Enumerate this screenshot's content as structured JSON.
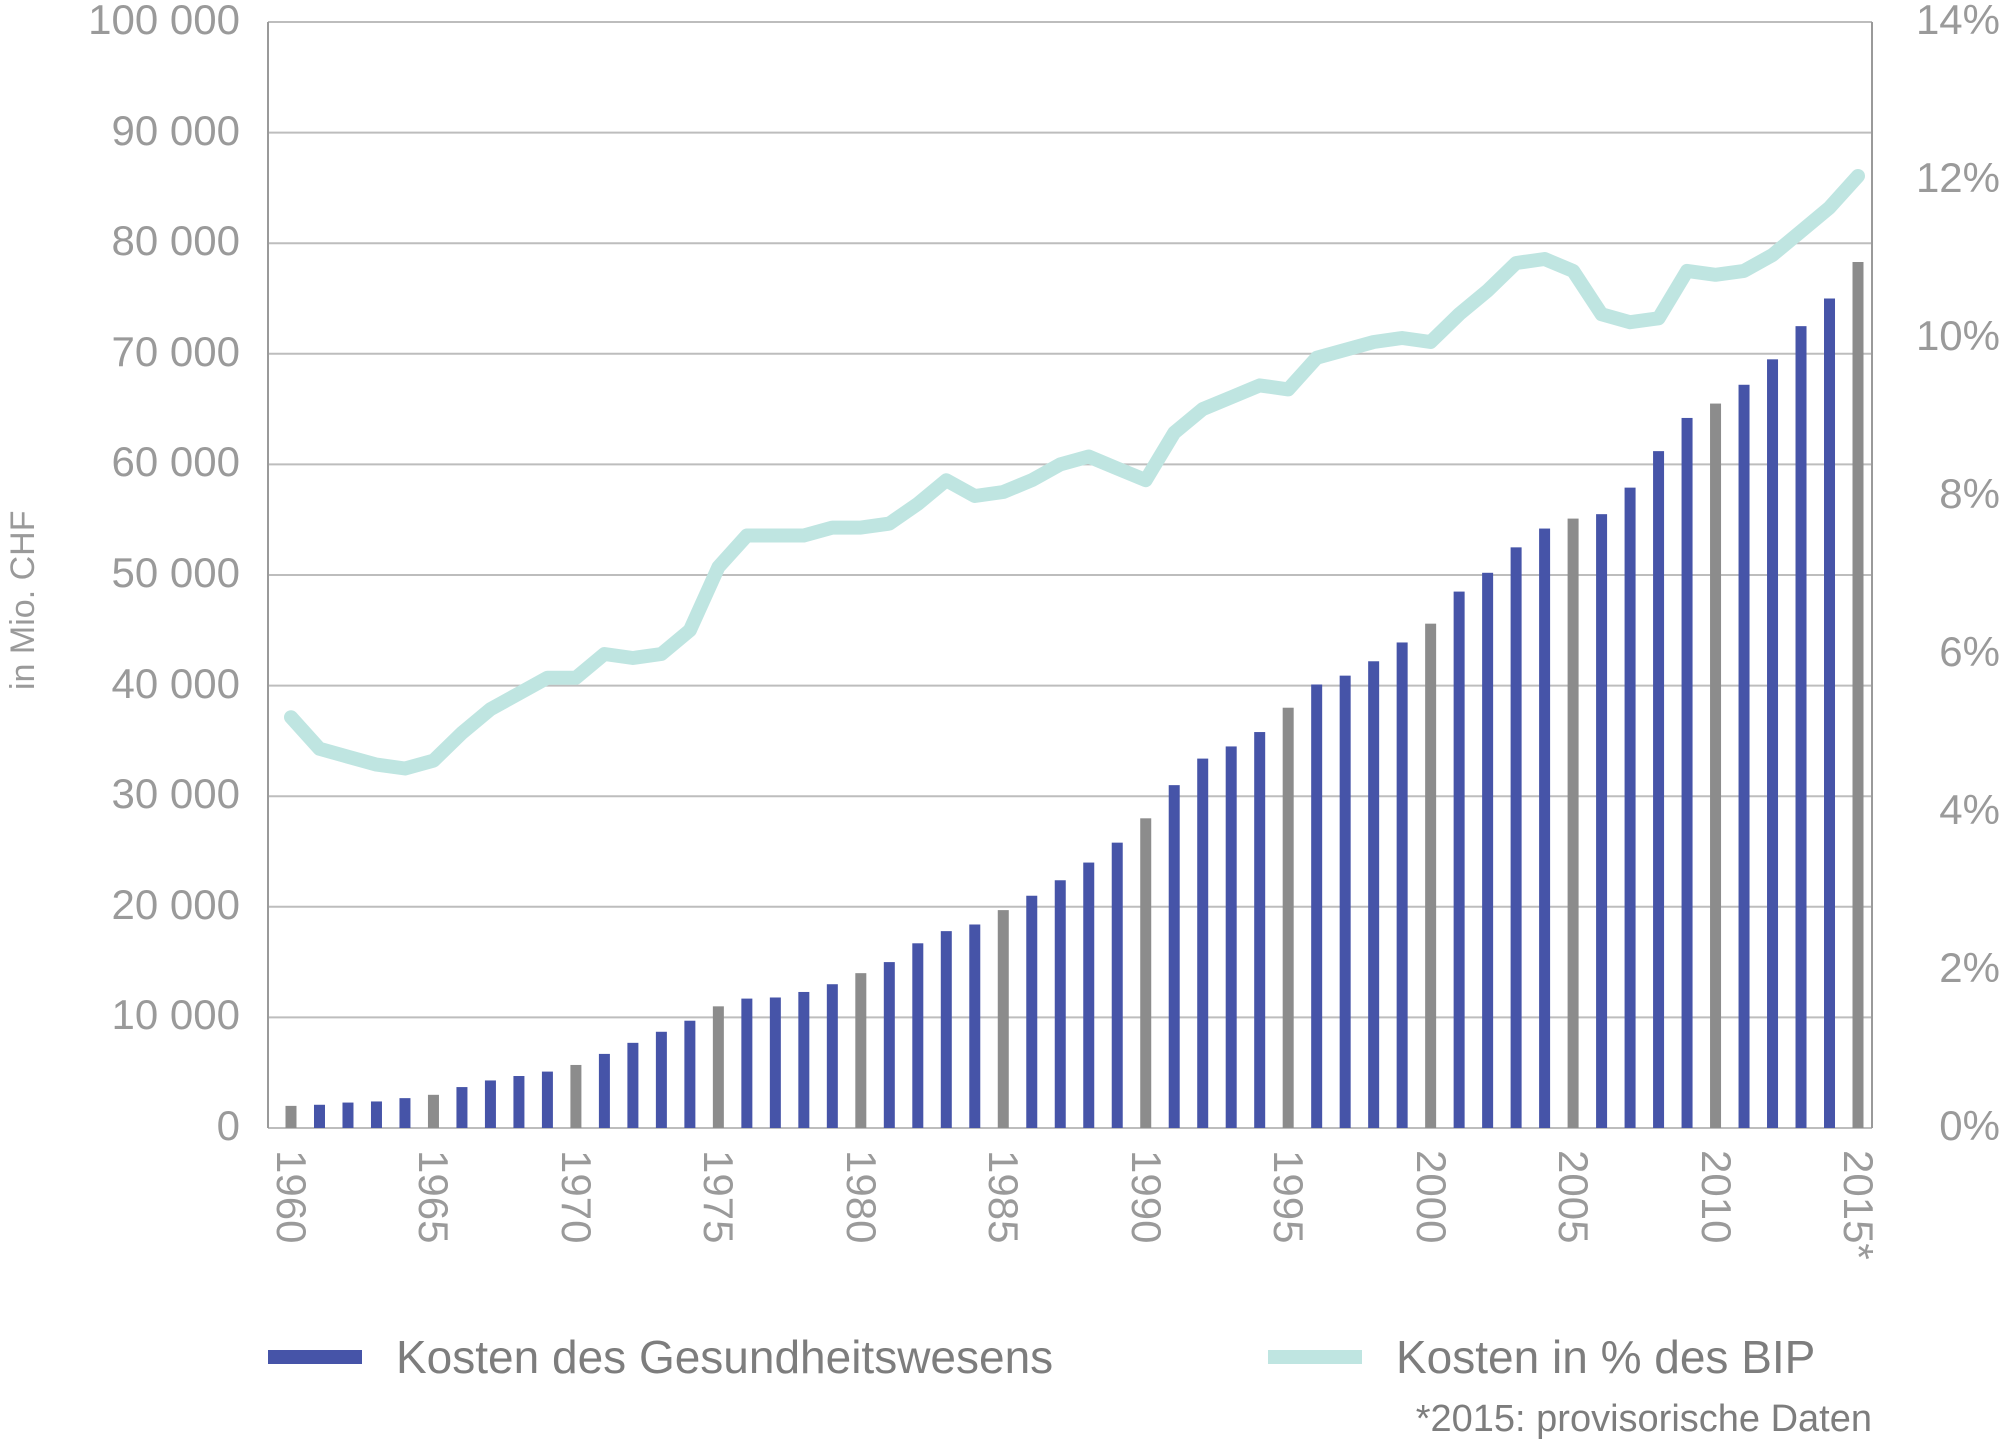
{
  "chart_data": {
    "type": "bar",
    "ylabel": "in Mio. CHF",
    "y_ticks": [
      "0",
      "10 000",
      "20 000",
      "30 000",
      "40 000",
      "50 000",
      "60 000",
      "70 000",
      "80 000",
      "90 000",
      "100 000"
    ],
    "y2_ticks": [
      "0%",
      "2%",
      "4%",
      "6%",
      "8%",
      "10%",
      "12%",
      "14%"
    ],
    "ylim": [
      0,
      100000
    ],
    "y2lim": [
      0,
      14
    ],
    "grid": true,
    "x_ticks": [
      "1960",
      "1965",
      "1970",
      "1975",
      "1980",
      "1985",
      "1990",
      "1995",
      "2000",
      "2005",
      "2010",
      "2015*"
    ],
    "colors": {
      "bars": "#4654a8",
      "bars_highlight": "#8c8c8c",
      "line": "#bfe5e1",
      "grid": "#bdbdbd",
      "axis": "#9a9a9a"
    },
    "categories": [
      "1960",
      "1961",
      "1962",
      "1963",
      "1964",
      "1965",
      "1966",
      "1967",
      "1968",
      "1969",
      "1970",
      "1971",
      "1972",
      "1973",
      "1974",
      "1975",
      "1976",
      "1977",
      "1978",
      "1979",
      "1980",
      "1981",
      "1982",
      "1983",
      "1984",
      "1985",
      "1986",
      "1987",
      "1988",
      "1989",
      "1990",
      "1991",
      "1992",
      "1993",
      "1994",
      "1995",
      "1996",
      "1997",
      "1998",
      "1999",
      "2000",
      "2001",
      "2002",
      "2003",
      "2004",
      "2005",
      "2006",
      "2007",
      "2008",
      "2009",
      "2010",
      "2011",
      "2012",
      "2013",
      "2014",
      "2015"
    ],
    "series": [
      {
        "name": "Kosten des Gesundheitswesens",
        "type": "bar",
        "axis": "left",
        "values": [
          2000,
          2100,
          2300,
          2400,
          2700,
          3000,
          3700,
          4300,
          4700,
          5100,
          5700,
          6700,
          7700,
          8700,
          9700,
          11000,
          11700,
          11800,
          12300,
          13000,
          14000,
          15000,
          16700,
          17800,
          18400,
          19700,
          21000,
          22400,
          24000,
          25800,
          28000,
          31000,
          33400,
          34500,
          35800,
          38000,
          40100,
          40900,
          42200,
          43900,
          45600,
          48500,
          50200,
          52500,
          54200,
          55100,
          55500,
          57900,
          61200,
          64200,
          65500,
          67200,
          69500,
          72500,
          75000,
          78300
        ]
      },
      {
        "name": "Kosten in % des BIP",
        "type": "line",
        "axis": "right",
        "values": [
          5.2,
          4.8,
          4.7,
          4.6,
          4.55,
          4.65,
          5.0,
          5.3,
          5.5,
          5.7,
          5.7,
          6.0,
          5.95,
          6.0,
          6.3,
          7.1,
          7.5,
          7.5,
          7.5,
          7.6,
          7.6,
          7.65,
          7.9,
          8.2,
          8.0,
          8.05,
          8.2,
          8.4,
          8.5,
          8.35,
          8.2,
          8.8,
          9.1,
          9.25,
          9.4,
          9.35,
          9.75,
          9.85,
          9.95,
          10.0,
          9.95,
          10.3,
          10.6,
          10.95,
          11.0,
          10.85,
          10.3,
          10.2,
          10.25,
          10.85,
          10.8,
          10.85,
          11.05,
          11.35,
          11.65,
          12.05
        ]
      }
    ],
    "highlighted_years": [
      "1960",
      "1965",
      "1970",
      "1975",
      "1980",
      "1985",
      "1990",
      "1995",
      "2000",
      "2005",
      "2010",
      "2015"
    ],
    "note": "*2015: provisorische Daten"
  }
}
